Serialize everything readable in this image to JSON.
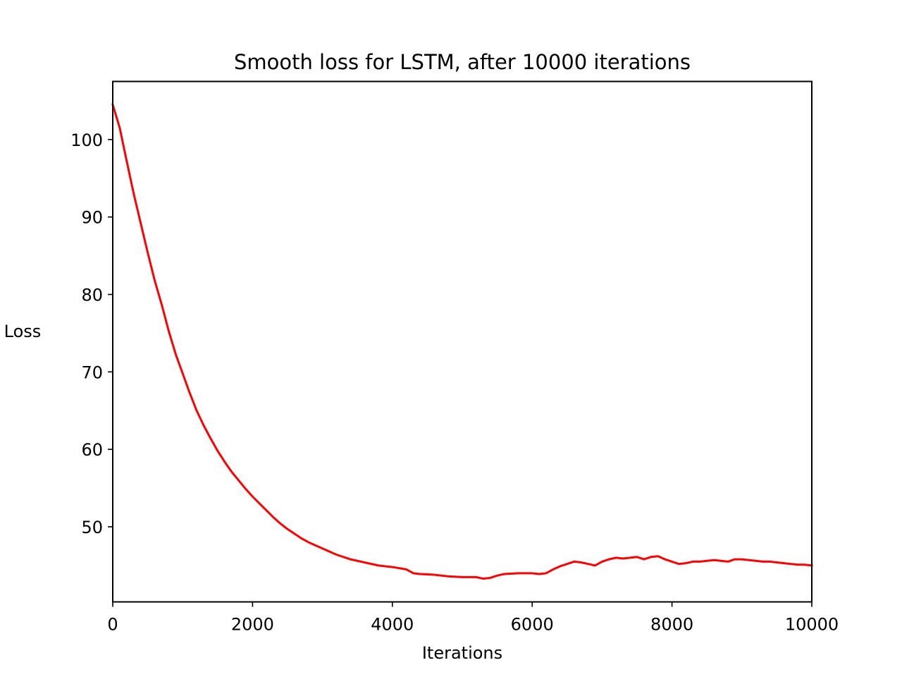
{
  "chart_data": {
    "type": "line",
    "title": "Smooth loss for LSTM, after 10000 iterations",
    "xlabel": "Iterations",
    "ylabel": "Loss",
    "xlim": [
      0,
      10000
    ],
    "ylim": [
      40.3,
      107.5
    ],
    "xticks": [
      0,
      2000,
      4000,
      6000,
      8000,
      10000
    ],
    "yticks": [
      50,
      60,
      70,
      80,
      90,
      100
    ],
    "xtick_labels": [
      "0",
      "2000",
      "4000",
      "6000",
      "8000",
      "10000"
    ],
    "ytick_labels": [
      "50",
      "60",
      "70",
      "80",
      "90",
      "100"
    ],
    "grid": false,
    "legend": "none",
    "series": [
      {
        "color": "#ff0000",
        "x": [
          0,
          100,
          200,
          300,
          400,
          500,
          600,
          700,
          800,
          900,
          1000,
          1100,
          1200,
          1300,
          1400,
          1500,
          1600,
          1700,
          1800,
          1900,
          2000,
          2100,
          2200,
          2300,
          2400,
          2500,
          2600,
          2700,
          2800,
          2900,
          3000,
          3200,
          3400,
          3600,
          3800,
          4000,
          4200,
          4300,
          4400,
          4600,
          4800,
          5000,
          5200,
          5300,
          5400,
          5500,
          5600,
          5800,
          6000,
          6100,
          6200,
          6300,
          6400,
          6500,
          6600,
          6700,
          6800,
          6900,
          7000,
          7100,
          7200,
          7300,
          7400,
          7500,
          7600,
          7700,
          7800,
          7900,
          8000,
          8100,
          8200,
          8300,
          8400,
          8500,
          8600,
          8700,
          8800,
          8900,
          9000,
          9100,
          9200,
          9300,
          9400,
          9500,
          9600,
          9700,
          9800,
          9900,
          10000
        ],
        "y": [
          104.5,
          101.5,
          97.2,
          93.0,
          89.2,
          85.4,
          81.8,
          78.7,
          75.3,
          72.3,
          69.8,
          67.3,
          65.0,
          63.1,
          61.4,
          59.8,
          58.4,
          57.1,
          56.0,
          54.9,
          53.9,
          53.0,
          52.1,
          51.2,
          50.4,
          49.7,
          49.1,
          48.5,
          48.0,
          47.6,
          47.2,
          46.4,
          45.8,
          45.4,
          45.0,
          44.8,
          44.5,
          44.0,
          43.9,
          43.8,
          43.6,
          43.5,
          43.5,
          43.3,
          43.4,
          43.7,
          43.9,
          44.0,
          44.0,
          43.9,
          44.0,
          44.5,
          44.9,
          45.2,
          45.5,
          45.4,
          45.2,
          45.0,
          45.5,
          45.8,
          46.0,
          45.9,
          46.0,
          46.1,
          45.8,
          46.1,
          46.2,
          45.8,
          45.5,
          45.2,
          45.3,
          45.5,
          45.5,
          45.6,
          45.7,
          45.6,
          45.5,
          45.8,
          45.8,
          45.7,
          45.6,
          45.5,
          45.5,
          45.4,
          45.3,
          45.2,
          45.1,
          45.1,
          45.0
        ]
      }
    ]
  }
}
